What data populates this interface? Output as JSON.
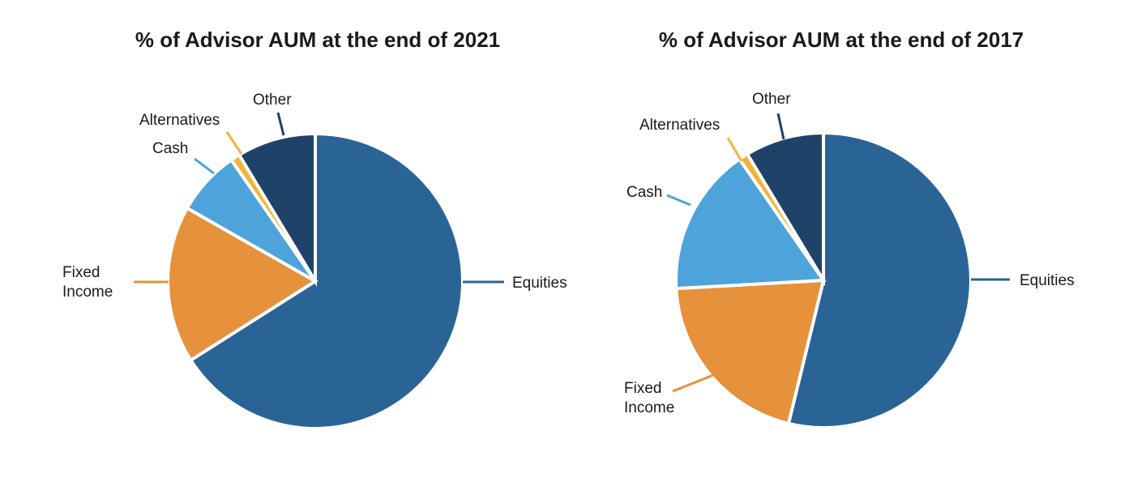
{
  "colors": {
    "Equities": "#2a6496",
    "Fixed Income": "#e6913b",
    "Cash": "#4ea4da",
    "Alternatives": "#f2b33d",
    "Other": "#1f4268"
  },
  "chart_data": [
    {
      "type": "pie",
      "title": "% of Advisor AUM at the end of 2021",
      "labels": [
        "Equities",
        "Fixed Income",
        "Cash",
        "Alternatives",
        "Other"
      ],
      "label_text": [
        [
          "Equities"
        ],
        [
          "Fixed",
          "Income"
        ],
        [
          "Cash"
        ],
        [
          "Alternatives"
        ],
        [
          "Other"
        ]
      ],
      "values": [
        65.0,
        17.0,
        7.0,
        1.0,
        8.5
      ],
      "start": "12 o'clock",
      "direction": "clockwise"
    },
    {
      "type": "pie",
      "title": "% of Advisor AUM at the end of 2017",
      "labels": [
        "Equities",
        "Fixed Income",
        "Cash",
        "Alternatives",
        "Other"
      ],
      "label_text": [
        [
          "Equities"
        ],
        [
          "Fixed",
          "Income"
        ],
        [
          "Cash"
        ],
        [
          "Alternatives"
        ],
        [
          "Other"
        ]
      ],
      "values": [
        53.0,
        20.0,
        16.0,
        1.0,
        8.5
      ],
      "start": "12 o'clock",
      "direction": "clockwise"
    }
  ]
}
